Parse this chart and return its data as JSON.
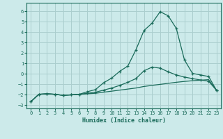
{
  "xlabel": "Humidex (Indice chaleur)",
  "xlim": [
    -0.5,
    23.5
  ],
  "ylim": [
    -3.3,
    6.8
  ],
  "xticks": [
    0,
    1,
    2,
    3,
    4,
    5,
    6,
    7,
    8,
    9,
    10,
    11,
    12,
    13,
    14,
    15,
    16,
    17,
    18,
    19,
    20,
    21,
    22,
    23
  ],
  "yticks": [
    -3,
    -2,
    -1,
    0,
    1,
    2,
    3,
    4,
    5,
    6
  ],
  "line_color": "#1a6b5a",
  "bg_color": "#cceaea",
  "grid_color": "#aacece",
  "curve_high_x": [
    0,
    1,
    2,
    3,
    4,
    5,
    6,
    7,
    8,
    9,
    10,
    11,
    12,
    13,
    14,
    15,
    16,
    17,
    18,
    19,
    20,
    21,
    22,
    23
  ],
  "curve_high_y": [
    -2.65,
    -1.95,
    -1.9,
    -1.95,
    -2.05,
    -2.0,
    -1.95,
    -1.7,
    -1.5,
    -0.85,
    -0.4,
    0.25,
    0.75,
    2.3,
    4.15,
    4.85,
    5.95,
    5.55,
    4.35,
    1.35,
    0.05,
    -0.1,
    -0.25,
    -1.6
  ],
  "curve_mid_x": [
    0,
    1,
    2,
    3,
    4,
    5,
    6,
    7,
    8,
    9,
    10,
    11,
    12,
    13,
    14,
    15,
    16,
    17,
    18,
    19,
    20,
    21,
    22,
    23
  ],
  "curve_mid_y": [
    -2.65,
    -1.95,
    -1.9,
    -1.95,
    -2.05,
    -2.0,
    -1.95,
    -1.85,
    -1.75,
    -1.55,
    -1.35,
    -1.1,
    -0.8,
    -0.45,
    0.3,
    0.65,
    0.55,
    0.2,
    -0.1,
    -0.3,
    -0.45,
    -0.58,
    -0.7,
    -1.6
  ],
  "curve_low_x": [
    0,
    1,
    2,
    3,
    4,
    5,
    6,
    7,
    8,
    9,
    10,
    11,
    12,
    13,
    14,
    15,
    16,
    17,
    18,
    19,
    20,
    21,
    22,
    23
  ],
  "curve_low_y": [
    -2.65,
    -1.95,
    -1.9,
    -1.95,
    -2.05,
    -2.0,
    -1.95,
    -1.9,
    -1.85,
    -1.75,
    -1.65,
    -1.55,
    -1.45,
    -1.35,
    -1.2,
    -1.1,
    -1.0,
    -0.9,
    -0.8,
    -0.72,
    -0.65,
    -0.6,
    -0.55,
    -1.6
  ]
}
